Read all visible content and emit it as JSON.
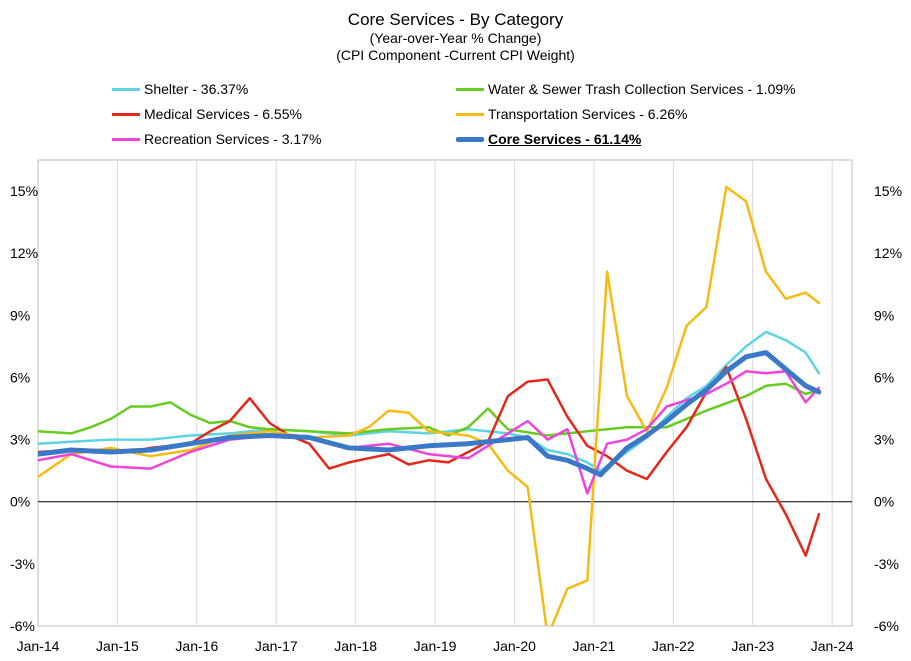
{
  "header": {
    "title": "Core Services - By Category",
    "subtitle1": "(Year-over-Year % Change)",
    "subtitle2": "(CPI Component -Current CPI Weight)"
  },
  "legend": [
    {
      "label": "Shelter - 36.37%",
      "color": "#5fd3e2"
    },
    {
      "label": "Water & Sewer Trash Collection Services - 1.09%",
      "color": "#66cc22"
    },
    {
      "label": "Medical Services - 6.55%",
      "color": "#e3281a"
    },
    {
      "label": "Transportation Services - 6.26%",
      "color": "#f5bb14"
    },
    {
      "label": "Recreation Services - 3.17%",
      "color": "#ee44dd"
    },
    {
      "label": "Core Services - 61.14%",
      "color": "#3a78c8"
    }
  ],
  "chart_data": {
    "type": "line",
    "x_ticks": [
      "Jan-14",
      "Jan-15",
      "Jan-16",
      "Jan-17",
      "Jan-18",
      "Jan-19",
      "Jan-20",
      "Jan-21",
      "Jan-22",
      "Jan-23",
      "Jan-24"
    ],
    "y_ticks": [
      "-6%",
      "-3%",
      "0%",
      "3%",
      "6%",
      "9%",
      "12%",
      "15%"
    ],
    "ylim": [
      -6,
      16.5
    ],
    "xlim": [
      "2014-01",
      "2024-04"
    ],
    "grid": "vertical",
    "series": [
      {
        "name": "Shelter - 36.37%",
        "color": "#5fd3e2",
        "width": 2.5,
        "points": [
          [
            "2014-01",
            2.8
          ],
          [
            "2014-06",
            2.9
          ],
          [
            "2014-12",
            3.0
          ],
          [
            "2015-06",
            3.0
          ],
          [
            "2015-12",
            3.2
          ],
          [
            "2016-06",
            3.3
          ],
          [
            "2016-12",
            3.5
          ],
          [
            "2017-06",
            3.4
          ],
          [
            "2017-12",
            3.2
          ],
          [
            "2018-06",
            3.4
          ],
          [
            "2018-12",
            3.3
          ],
          [
            "2019-06",
            3.5
          ],
          [
            "2019-12",
            3.3
          ],
          [
            "2020-03",
            3.1
          ],
          [
            "2020-06",
            2.5
          ],
          [
            "2020-09",
            2.3
          ],
          [
            "2020-12",
            1.9
          ],
          [
            "2021-02",
            1.5
          ],
          [
            "2021-06",
            2.4
          ],
          [
            "2021-09",
            3.1
          ],
          [
            "2021-12",
            4.1
          ],
          [
            "2022-03",
            5.0
          ],
          [
            "2022-06",
            5.6
          ],
          [
            "2022-09",
            6.6
          ],
          [
            "2022-12",
            7.5
          ],
          [
            "2023-03",
            8.2
          ],
          [
            "2023-06",
            7.8
          ],
          [
            "2023-09",
            7.2
          ],
          [
            "2023-11",
            6.2
          ]
        ]
      },
      {
        "name": "Water & Sewer Trash Collection Services - 1.09%",
        "color": "#66cc22",
        "width": 2.5,
        "points": [
          [
            "2014-01",
            3.4
          ],
          [
            "2014-06",
            3.3
          ],
          [
            "2014-09",
            3.6
          ],
          [
            "2014-12",
            4.0
          ],
          [
            "2015-03",
            4.6
          ],
          [
            "2015-06",
            4.6
          ],
          [
            "2015-09",
            4.8
          ],
          [
            "2015-12",
            4.2
          ],
          [
            "2016-03",
            3.8
          ],
          [
            "2016-06",
            3.9
          ],
          [
            "2016-09",
            3.6
          ],
          [
            "2016-12",
            3.5
          ],
          [
            "2017-06",
            3.4
          ],
          [
            "2017-12",
            3.3
          ],
          [
            "2018-06",
            3.5
          ],
          [
            "2018-12",
            3.6
          ],
          [
            "2019-03",
            3.2
          ],
          [
            "2019-06",
            3.6
          ],
          [
            "2019-09",
            4.5
          ],
          [
            "2019-12",
            3.5
          ],
          [
            "2020-06",
            3.2
          ],
          [
            "2020-12",
            3.4
          ],
          [
            "2021-06",
            3.6
          ],
          [
            "2021-12",
            3.6
          ],
          [
            "2022-06",
            4.4
          ],
          [
            "2022-12",
            5.1
          ],
          [
            "2023-03",
            5.6
          ],
          [
            "2023-06",
            5.7
          ],
          [
            "2023-09",
            5.2
          ],
          [
            "2023-11",
            5.4
          ]
        ]
      },
      {
        "name": "Medical Services - 6.55%",
        "color": "#e3281a",
        "width": 2.5,
        "points": [
          [
            "2014-01",
            2.4
          ],
          [
            "2014-06",
            2.5
          ],
          [
            "2014-12",
            2.5
          ],
          [
            "2015-03",
            2.4
          ],
          [
            "2015-06",
            2.6
          ],
          [
            "2015-09",
            2.7
          ],
          [
            "2015-12",
            2.8
          ],
          [
            "2016-03",
            3.4
          ],
          [
            "2016-06",
            3.9
          ],
          [
            "2016-09",
            5.0
          ],
          [
            "2016-12",
            3.8
          ],
          [
            "2017-03",
            3.2
          ],
          [
            "2017-06",
            2.8
          ],
          [
            "2017-09",
            1.6
          ],
          [
            "2017-12",
            1.9
          ],
          [
            "2018-03",
            2.1
          ],
          [
            "2018-06",
            2.3
          ],
          [
            "2018-09",
            1.8
          ],
          [
            "2018-12",
            2.0
          ],
          [
            "2019-03",
            1.9
          ],
          [
            "2019-06",
            2.4
          ],
          [
            "2019-09",
            2.9
          ],
          [
            "2019-12",
            5.1
          ],
          [
            "2020-03",
            5.8
          ],
          [
            "2020-06",
            5.9
          ],
          [
            "2020-09",
            4.1
          ],
          [
            "2020-12",
            2.7
          ],
          [
            "2021-03",
            2.2
          ],
          [
            "2021-06",
            1.5
          ],
          [
            "2021-09",
            1.1
          ],
          [
            "2021-12",
            2.4
          ],
          [
            "2022-03",
            3.6
          ],
          [
            "2022-06",
            5.3
          ],
          [
            "2022-09",
            6.5
          ],
          [
            "2022-12",
            4.0
          ],
          [
            "2023-03",
            1.1
          ],
          [
            "2023-06",
            -0.6
          ],
          [
            "2023-09",
            -2.6
          ],
          [
            "2023-11",
            -0.6
          ]
        ]
      },
      {
        "name": "Transportation Services - 6.26%",
        "color": "#f5bb14",
        "width": 2.5,
        "points": [
          [
            "2014-01",
            1.2
          ],
          [
            "2014-06",
            2.3
          ],
          [
            "2014-12",
            2.6
          ],
          [
            "2015-06",
            2.2
          ],
          [
            "2015-12",
            2.5
          ],
          [
            "2016-06",
            3.2
          ],
          [
            "2016-12",
            3.4
          ],
          [
            "2017-06",
            3.1
          ],
          [
            "2017-12",
            3.2
          ],
          [
            "2018-03",
            3.6
          ],
          [
            "2018-06",
            4.4
          ],
          [
            "2018-09",
            4.3
          ],
          [
            "2018-12",
            3.4
          ],
          [
            "2019-06",
            3.2
          ],
          [
            "2019-09",
            2.8
          ],
          [
            "2019-12",
            1.5
          ],
          [
            "2020-03",
            0.7
          ],
          [
            "2020-06",
            -6.5
          ],
          [
            "2020-09",
            -4.2
          ],
          [
            "2020-12",
            -3.8
          ],
          [
            "2021-03",
            11.1
          ],
          [
            "2021-06",
            5.1
          ],
          [
            "2021-09",
            3.4
          ],
          [
            "2021-12",
            5.5
          ],
          [
            "2022-03",
            8.5
          ],
          [
            "2022-06",
            9.4
          ],
          [
            "2022-09",
            15.2
          ],
          [
            "2022-12",
            14.5
          ],
          [
            "2023-03",
            11.1
          ],
          [
            "2023-06",
            9.8
          ],
          [
            "2023-09",
            10.1
          ],
          [
            "2023-11",
            9.6
          ]
        ]
      },
      {
        "name": "Recreation Services - 3.17%",
        "color": "#ee44dd",
        "width": 2.5,
        "points": [
          [
            "2014-01",
            2.0
          ],
          [
            "2014-06",
            2.3
          ],
          [
            "2014-12",
            1.7
          ],
          [
            "2015-06",
            1.6
          ],
          [
            "2015-12",
            2.4
          ],
          [
            "2016-06",
            3.0
          ],
          [
            "2016-12",
            3.2
          ],
          [
            "2017-06",
            3.1
          ],
          [
            "2017-12",
            2.6
          ],
          [
            "2018-06",
            2.8
          ],
          [
            "2018-12",
            2.3
          ],
          [
            "2019-06",
            2.1
          ],
          [
            "2019-12",
            3.3
          ],
          [
            "2020-03",
            3.9
          ],
          [
            "2020-06",
            3.0
          ],
          [
            "2020-09",
            3.5
          ],
          [
            "2020-12",
            0.4
          ],
          [
            "2021-03",
            2.8
          ],
          [
            "2021-06",
            3.0
          ],
          [
            "2021-09",
            3.5
          ],
          [
            "2021-12",
            4.6
          ],
          [
            "2022-03",
            4.9
          ],
          [
            "2022-06",
            5.2
          ],
          [
            "2022-09",
            5.7
          ],
          [
            "2022-12",
            6.3
          ],
          [
            "2023-03",
            6.2
          ],
          [
            "2023-06",
            6.3
          ],
          [
            "2023-09",
            4.8
          ],
          [
            "2023-11",
            5.5
          ]
        ]
      },
      {
        "name": "Core Services - 61.14%",
        "color": "#3a78c8",
        "width": 5,
        "points": [
          [
            "2014-01",
            2.3
          ],
          [
            "2014-06",
            2.5
          ],
          [
            "2014-12",
            2.4
          ],
          [
            "2015-06",
            2.5
          ],
          [
            "2015-12",
            2.8
          ],
          [
            "2016-06",
            3.1
          ],
          [
            "2016-12",
            3.2
          ],
          [
            "2017-06",
            3.1
          ],
          [
            "2017-12",
            2.6
          ],
          [
            "2018-06",
            2.5
          ],
          [
            "2018-12",
            2.7
          ],
          [
            "2019-06",
            2.8
          ],
          [
            "2019-12",
            3.0
          ],
          [
            "2020-03",
            3.1
          ],
          [
            "2020-06",
            2.2
          ],
          [
            "2020-09",
            2.0
          ],
          [
            "2020-12",
            1.6
          ],
          [
            "2021-02",
            1.3
          ],
          [
            "2021-06",
            2.6
          ],
          [
            "2021-09",
            3.2
          ],
          [
            "2021-12",
            3.9
          ],
          [
            "2022-03",
            4.7
          ],
          [
            "2022-06",
            5.4
          ],
          [
            "2022-09",
            6.3
          ],
          [
            "2022-12",
            7.0
          ],
          [
            "2023-03",
            7.2
          ],
          [
            "2023-06",
            6.4
          ],
          [
            "2023-09",
            5.6
          ],
          [
            "2023-11",
            5.3
          ]
        ]
      }
    ]
  }
}
